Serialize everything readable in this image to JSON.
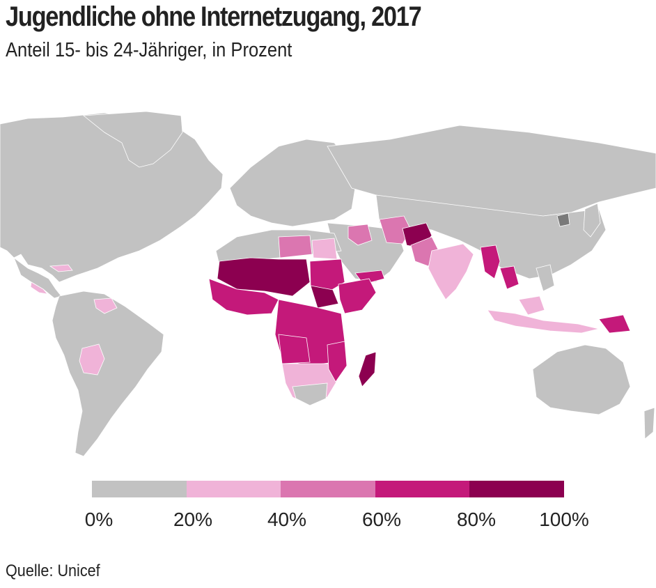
{
  "title": "Jugendliche ohne Internetzugang, 2017",
  "subtitle": "Anteil 15- bis 24-Jähriger, in Prozent",
  "source": "Quelle: Unicef",
  "colors": {
    "no_data": "#c2c2c2",
    "bin_0_20": "#c2c2c2",
    "bin_20_40": "#f0b3d8",
    "bin_40_60": "#db76b0",
    "bin_60_80": "#c4197a",
    "bin_80_100": "#8c0050",
    "border": "#ffffff",
    "special_dark": "#7a7a7a"
  },
  "legend": {
    "bins": [
      {
        "from": 0,
        "to": 20,
        "color": "#c2c2c2"
      },
      {
        "from": 20,
        "to": 40,
        "color": "#f0b3d8"
      },
      {
        "from": 40,
        "to": 60,
        "color": "#db76b0"
      },
      {
        "from": 60,
        "to": 80,
        "color": "#c4197a"
      },
      {
        "from": 80,
        "to": 100,
        "color": "#8c0050"
      }
    ],
    "tick_labels": [
      "0%",
      "20%",
      "40%",
      "60%",
      "80%",
      "100%"
    ]
  }
}
